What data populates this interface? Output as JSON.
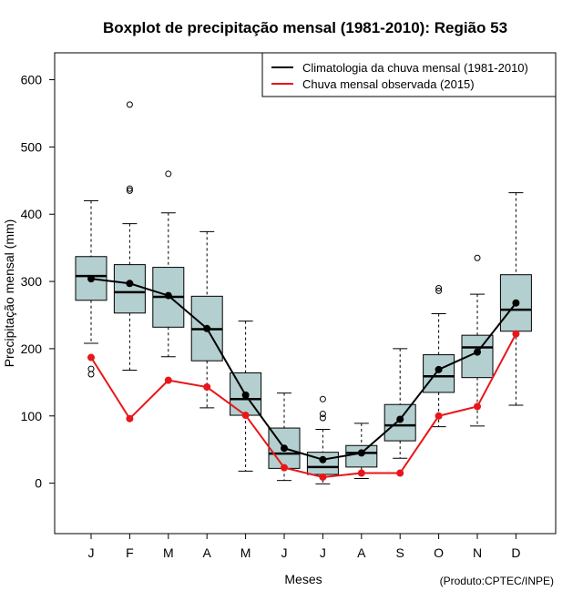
{
  "chart_data": {
    "type": "boxplot",
    "title": "Boxplot de precipitação mensal (1981-2010): Região 53",
    "xlabel": "Meses",
    "ylabel": "Precipitação mensal (mm)",
    "credit": "(Produto:CPTEC/INPE)",
    "ylim": [
      -75,
      640
    ],
    "yticks": [
      0,
      100,
      200,
      300,
      400,
      500,
      600
    ],
    "categories": [
      "J",
      "F",
      "M",
      "A",
      "M",
      "J",
      "J",
      "A",
      "S",
      "O",
      "N",
      "D"
    ],
    "boxes": [
      {
        "whisker_low": 208,
        "q1": 272,
        "median": 308,
        "q3": 337,
        "whisker_high": 420,
        "outliers": [
          170,
          162
        ]
      },
      {
        "whisker_low": 168,
        "q1": 253,
        "median": 284,
        "q3": 325,
        "whisker_high": 386,
        "outliers": [
          563,
          438,
          435
        ]
      },
      {
        "whisker_low": 188,
        "q1": 232,
        "median": 277,
        "q3": 321,
        "whisker_high": 402,
        "outliers": [
          460
        ]
      },
      {
        "whisker_low": 112,
        "q1": 182,
        "median": 229,
        "q3": 278,
        "whisker_high": 374,
        "outliers": []
      },
      {
        "whisker_low": 18,
        "q1": 101,
        "median": 125,
        "q3": 164,
        "whisker_high": 241,
        "outliers": []
      },
      {
        "whisker_low": 4,
        "q1": 22,
        "median": 44,
        "q3": 82,
        "whisker_high": 134,
        "outliers": []
      },
      {
        "whisker_low": -1,
        "q1": 13,
        "median": 24,
        "q3": 46,
        "whisker_high": 80,
        "outliers": [
          125,
          103,
          97
        ]
      },
      {
        "whisker_low": 7,
        "q1": 24,
        "median": 45,
        "q3": 56,
        "whisker_high": 89,
        "outliers": []
      },
      {
        "whisker_low": 37,
        "q1": 63,
        "median": 86,
        "q3": 117,
        "whisker_high": 200,
        "outliers": []
      },
      {
        "whisker_low": 84,
        "q1": 135,
        "median": 159,
        "q3": 191,
        "whisker_high": 252,
        "outliers": [
          290,
          286
        ]
      },
      {
        "whisker_low": 85,
        "q1": 157,
        "median": 202,
        "q3": 220,
        "whisker_high": 281,
        "outliers": [
          335
        ]
      },
      {
        "whisker_low": 116,
        "q1": 226,
        "median": 258,
        "q3": 310,
        "whisker_high": 432,
        "outliers": []
      }
    ],
    "series": [
      {
        "name": "Climatologia da chuva mensal (1981-2010)",
        "color": "#000000",
        "values": [
          304,
          297,
          279,
          230,
          131,
          52,
          35,
          45,
          95,
          169,
          195,
          268
        ]
      },
      {
        "name": "Chuva mensal observada (2015)",
        "color": "#e8161a",
        "values": [
          187,
          96,
          153,
          143,
          101,
          23,
          9,
          15,
          15,
          100,
          114,
          222
        ]
      }
    ],
    "box_fill": "#b4cfcf",
    "legend_position": "top-right"
  }
}
